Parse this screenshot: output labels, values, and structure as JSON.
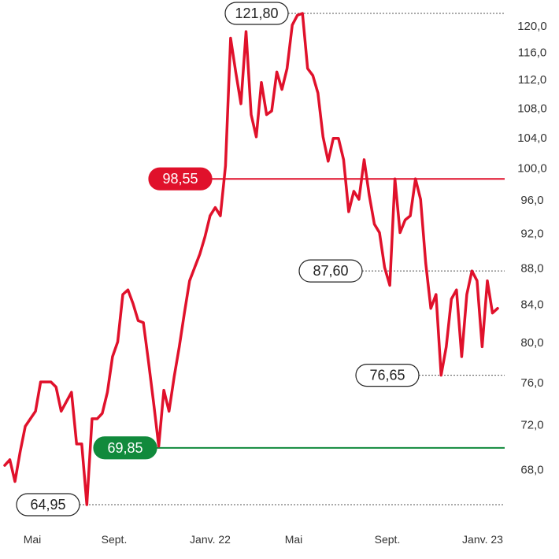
{
  "chart_data": {
    "type": "line",
    "title": "",
    "xlabel": "",
    "ylabel": "",
    "x_tick_labels": [
      "Mai",
      "Sept.",
      "Janv. 22",
      "Mai",
      "Sept.",
      "Janv. 23"
    ],
    "y_ticks": [
      68,
      72,
      76,
      80,
      84,
      88,
      92,
      96,
      100,
      104,
      108,
      112,
      116,
      120
    ],
    "y_tick_labels": [
      "68,0",
      "72,0",
      "76,0",
      "80,0",
      "84,0",
      "88,0",
      "92,0",
      "96,0",
      "100,0",
      "104,0",
      "108,0",
      "112,0",
      "116,0",
      "120,0"
    ],
    "scale": "log",
    "ylim": [
      64.95,
      121.8
    ],
    "grid": false,
    "series": [
      {
        "color": "#e0112b",
        "values": [
          68.3,
          68.8,
          66.9,
          69.5,
          71.8,
          72.5,
          73.2,
          76.0,
          76.0,
          76.0,
          75.5,
          73.2,
          74.1,
          75.0,
          70.2,
          70.2,
          64.95,
          72.5,
          72.5,
          73.0,
          75.0,
          78.5,
          80.0,
          85.0,
          85.5,
          84.0,
          82.2,
          82.0,
          78.0,
          74.0,
          70.0,
          75.2,
          73.2,
          76.5,
          79.5,
          83.0,
          86.5,
          88.0,
          89.5,
          91.5,
          94.0,
          95.0,
          94.0,
          100.2,
          118.0,
          113.0,
          108.5,
          119.0,
          107.0,
          104.0,
          111.5,
          107.0,
          107.5,
          113.0,
          110.5,
          113.5,
          120.0,
          121.5,
          121.8,
          113.5,
          112.5,
          110.0,
          104.0,
          100.8,
          103.8,
          103.8,
          101.0,
          94.5,
          97.0,
          96.0,
          101.0,
          96.5,
          93.0,
          92.0,
          88.0,
          86.0,
          98.55,
          92.0,
          93.5,
          94.0,
          98.55,
          96.0,
          88.5,
          83.5,
          85.0,
          76.65,
          79.5,
          84.5,
          85.5,
          78.5,
          85.0,
          87.6,
          86.5,
          79.5,
          86.5,
          83.0,
          83.5
        ]
      }
    ],
    "reference_lines": [
      {
        "value": 98.55,
        "label": "98,55",
        "color": "#e0112b",
        "style": "solid"
      },
      {
        "value": 69.85,
        "label": "69,85",
        "color": "#118a3c",
        "style": "solid"
      },
      {
        "value": 121.8,
        "label": "121,80",
        "color": "#555555",
        "style": "dotted"
      },
      {
        "value": 87.6,
        "label": "87,60",
        "color": "#555555",
        "style": "dotted"
      },
      {
        "value": 76.65,
        "label": "76,65",
        "color": "#555555",
        "style": "dotted"
      },
      {
        "value": 64.95,
        "label": "64,95",
        "color": "#555555",
        "style": "dotted"
      }
    ]
  }
}
